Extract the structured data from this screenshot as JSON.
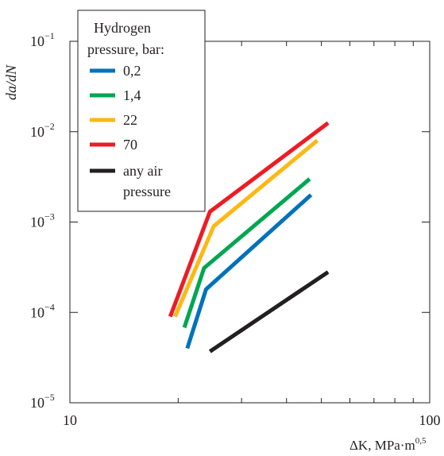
{
  "chart_data": {
    "type": "line",
    "title": "",
    "xlabel": "ΔK, MPa·m",
    "xlabel_exponent": "0,5",
    "ylabel": "da/dN",
    "xscale": "log",
    "yscale": "log",
    "xlim": [
      10,
      100
    ],
    "ylim": [
      1e-05,
      0.1
    ],
    "x_ticks": [
      {
        "value": 10,
        "label": "10"
      },
      {
        "value": 100,
        "label": "100"
      }
    ],
    "y_ticks": [
      {
        "value": 0.1,
        "base": "10",
        "exp": "−1"
      },
      {
        "value": 0.01,
        "base": "10",
        "exp": "−2"
      },
      {
        "value": 0.001,
        "base": "10",
        "exp": "−3"
      },
      {
        "value": 0.0001,
        "base": "10",
        "exp": "−4"
      },
      {
        "value": 1e-05,
        "base": "10",
        "exp": "−5"
      }
    ],
    "grid": false,
    "legend": {
      "title_line1": "Hydrogen",
      "title_line2": "pressure, bar:",
      "placement": "top-left"
    },
    "series": [
      {
        "name": "0,2",
        "color": "#0072bc",
        "points": [
          [
            21.2,
            4e-05
          ],
          [
            23.9,
            0.00018
          ],
          [
            46.8,
            0.002
          ]
        ]
      },
      {
        "name": "1,4",
        "color": "#00a651",
        "points": [
          [
            20.8,
            6.8e-05
          ],
          [
            23.6,
            0.00031
          ],
          [
            46.4,
            0.003
          ]
        ]
      },
      {
        "name": "22",
        "color": "#fdb813",
        "points": [
          [
            19.6,
            9e-05
          ],
          [
            25.1,
            0.0009
          ],
          [
            48.7,
            0.008
          ]
        ]
      },
      {
        "name": "70",
        "color": "#ed1c24",
        "points": [
          [
            19.0,
            9e-05
          ],
          [
            24.5,
            0.0013
          ],
          [
            52.2,
            0.0125
          ]
        ]
      },
      {
        "name": "any air",
        "name_line2": "pressure",
        "color": "#231f20",
        "points": [
          [
            24.5,
            3.7e-05
          ],
          [
            52.2,
            0.00028
          ]
        ]
      }
    ]
  }
}
